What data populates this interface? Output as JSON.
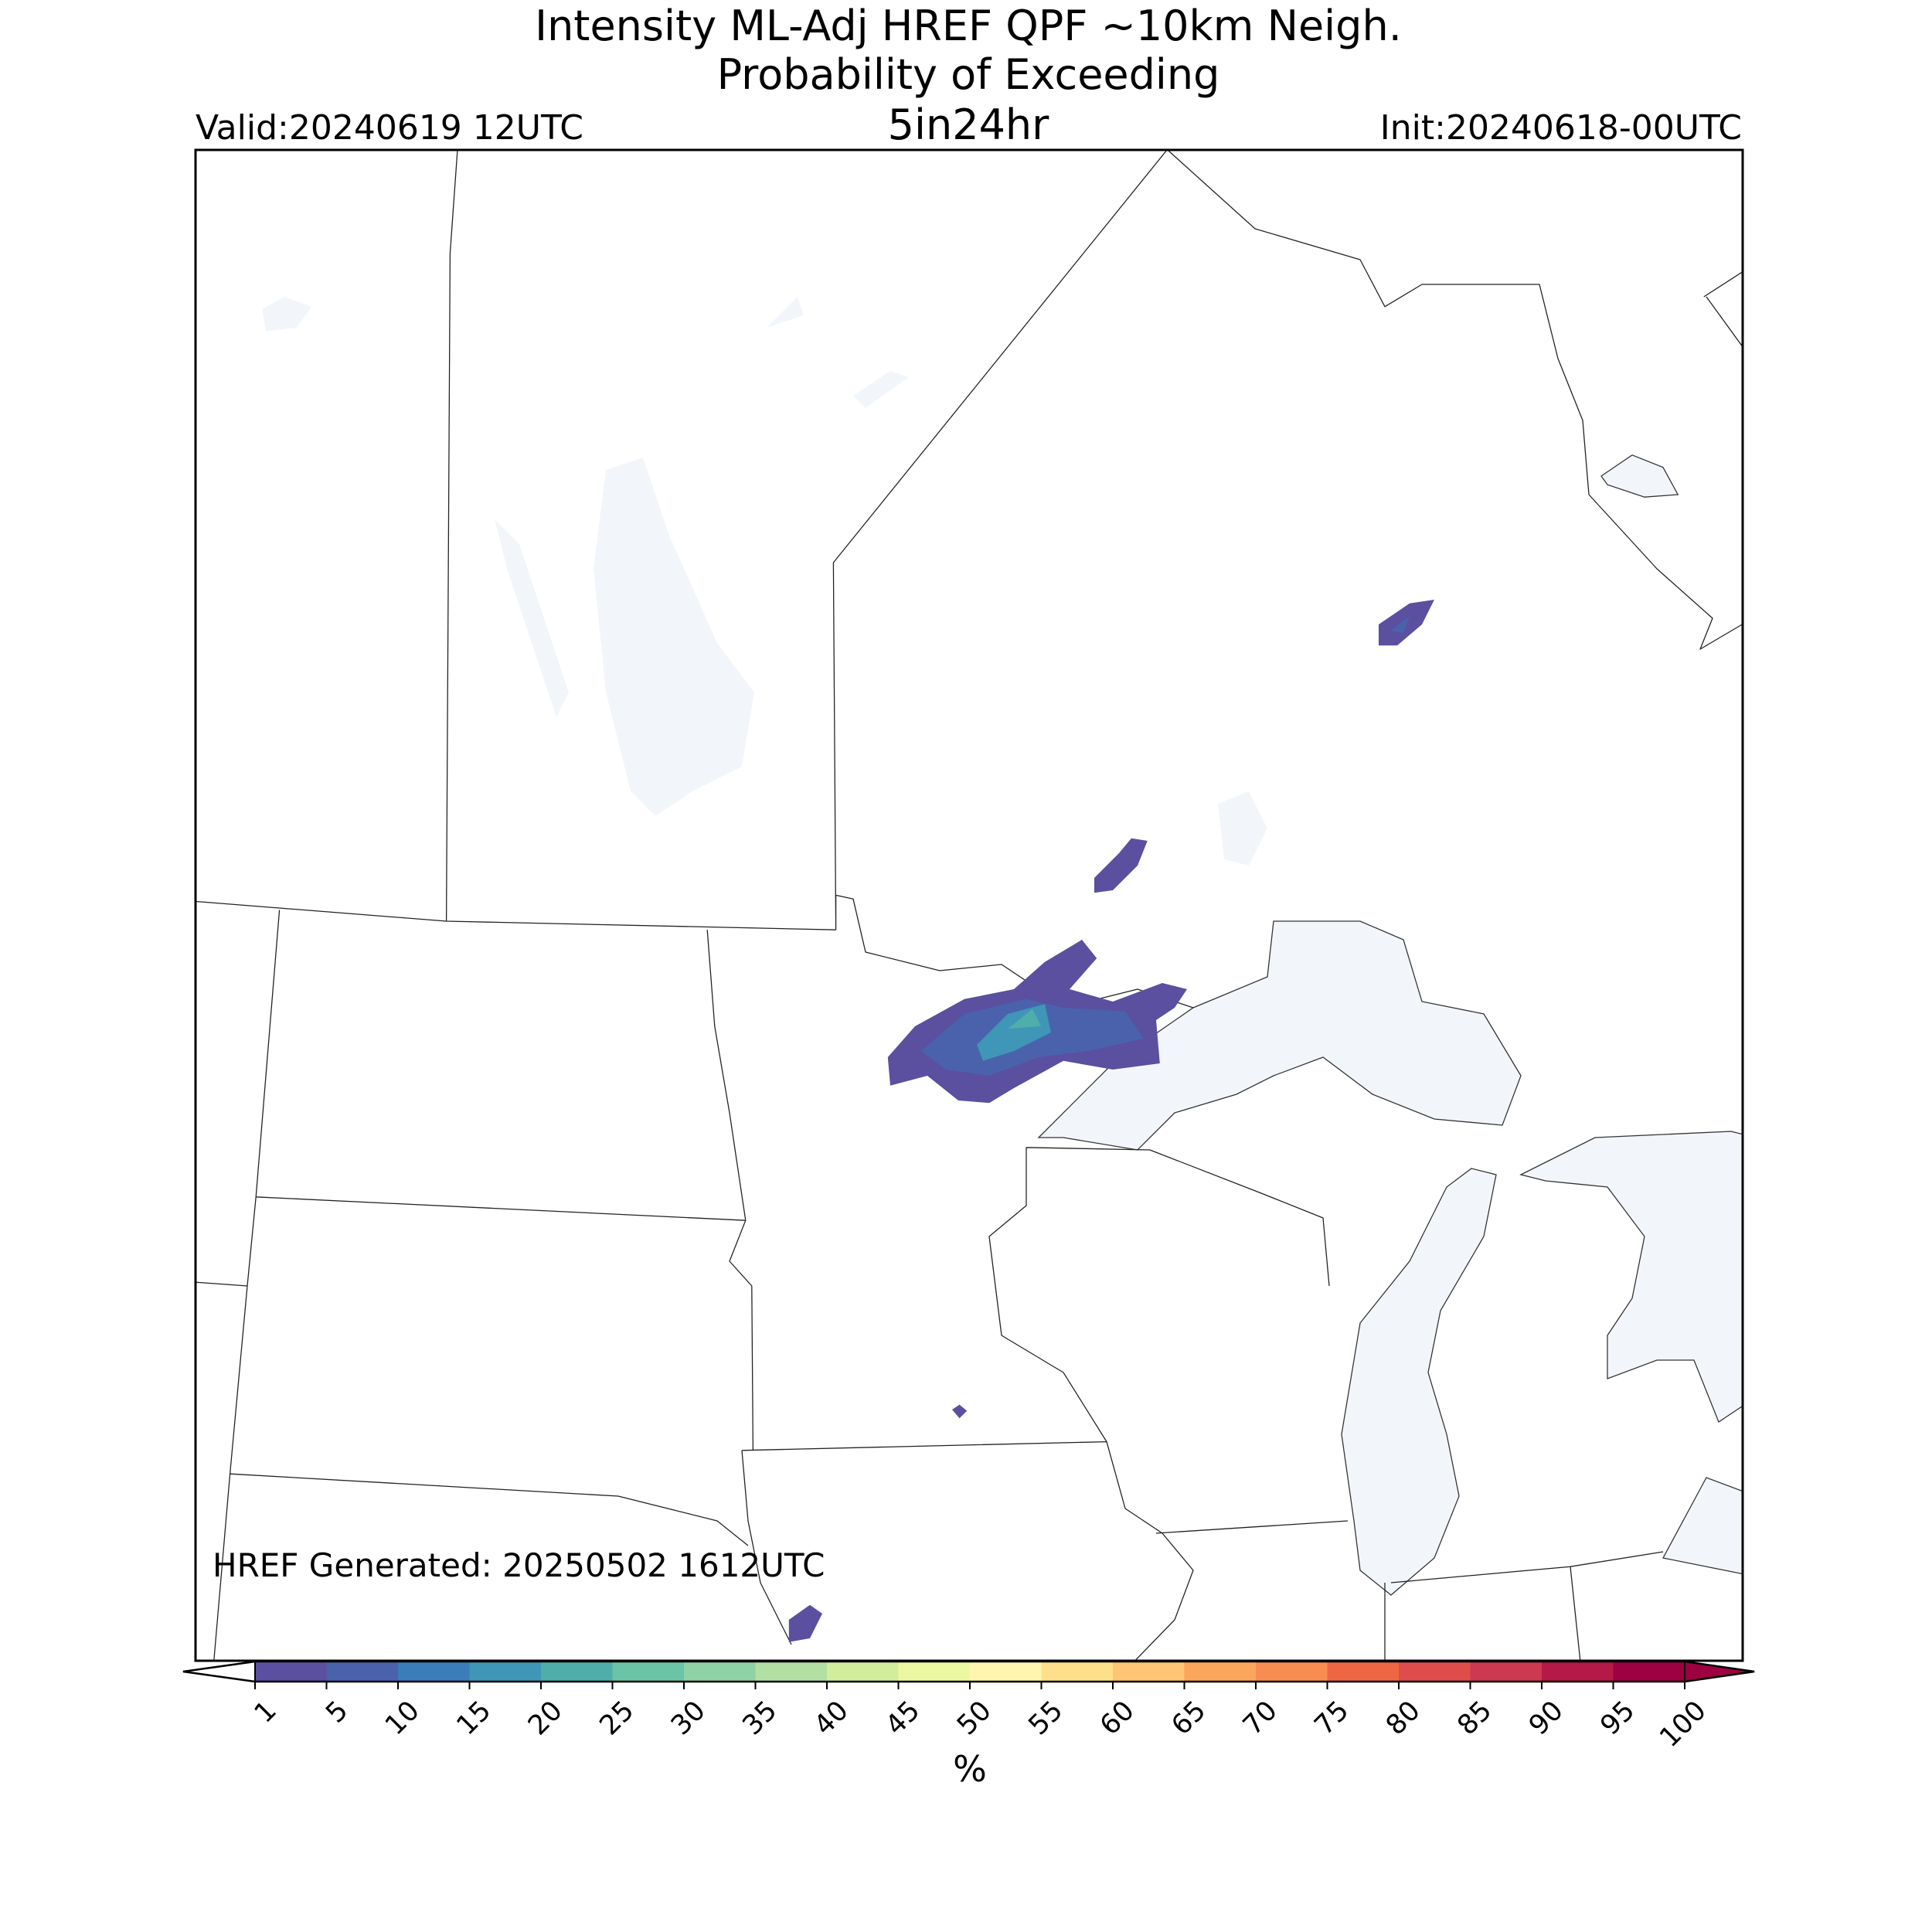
{
  "header": {
    "title_lines": [
      "Intensity ML-Adj HREF QPF ~10km Neigh.",
      "Probability of Exceeding"
    ],
    "threshold": "5in24hr",
    "valid": "Valid:20240619 12UTC",
    "init": "Init:20240618-00UTC"
  },
  "map": {
    "note": "HREF Generated: 20250502 1612UTC",
    "lake_color": "#f2f6fb",
    "line_color": "#222222"
  },
  "colorbar": {
    "ticks": [
      1,
      5,
      10,
      15,
      20,
      25,
      30,
      35,
      40,
      45,
      50,
      55,
      60,
      65,
      70,
      75,
      80,
      85,
      90,
      95,
      100
    ],
    "colors": [
      "#5b4fa0",
      "#4a62ac",
      "#3a7db8",
      "#3f96b7",
      "#4fadaa",
      "#6bc4a5",
      "#8fd2a4",
      "#b2e0a2",
      "#d2ed9b",
      "#ecf7a1",
      "#fff5ae",
      "#fee08b",
      "#fdc574",
      "#fca55d",
      "#f88d52",
      "#ef6645",
      "#de4d4b",
      "#cc3950",
      "#b41947",
      "#9e0142"
    ],
    "under_color": "#ffffff",
    "over_color": "#9e0142",
    "label": "%"
  }
}
